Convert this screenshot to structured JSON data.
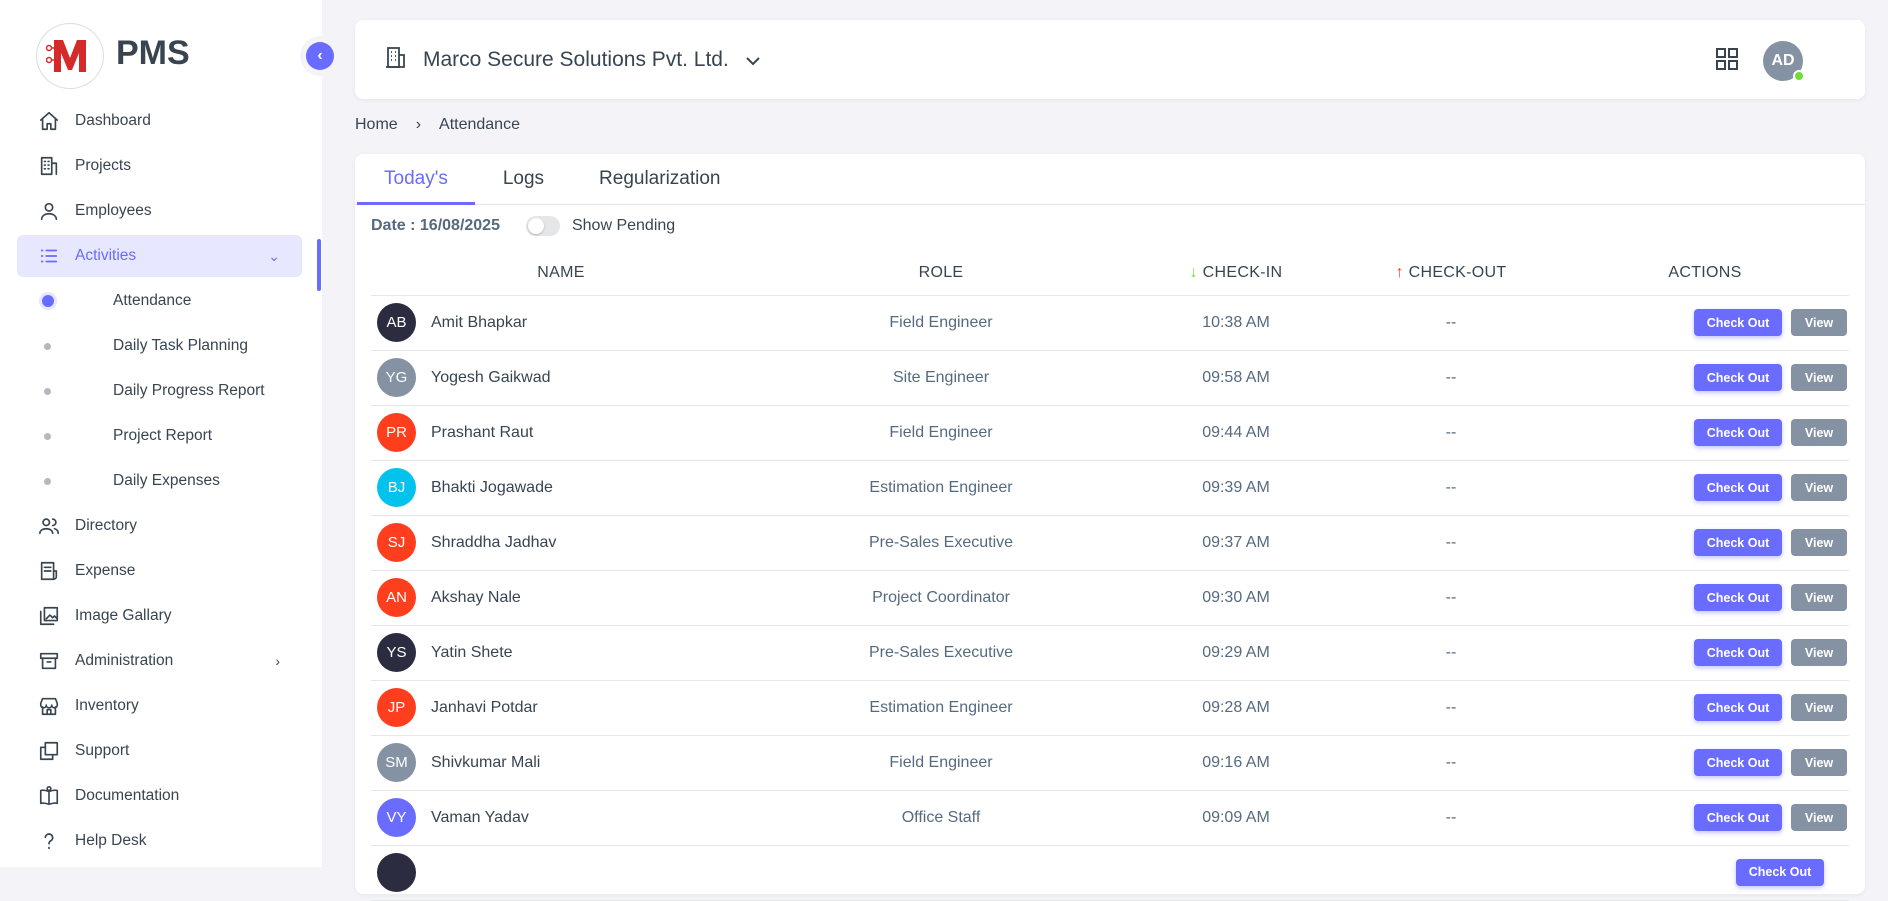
{
  "brand": {
    "name": "PMS",
    "logo_letter": "M"
  },
  "sidebar": {
    "items": [
      {
        "label": "Dashboard",
        "icon": "home-icon"
      },
      {
        "label": "Projects",
        "icon": "building-icon"
      },
      {
        "label": "Employees",
        "icon": "user-icon"
      },
      {
        "label": "Activities",
        "icon": "list-icon",
        "active": true,
        "expanded": true
      },
      {
        "label": "Directory",
        "icon": "users-icon"
      },
      {
        "label": "Expense",
        "icon": "receipt-icon"
      },
      {
        "label": "Image Gallary",
        "icon": "gallery-icon"
      },
      {
        "label": "Administration",
        "icon": "archive-icon"
      },
      {
        "label": "Inventory",
        "icon": "store-icon"
      },
      {
        "label": "Support",
        "icon": "copy-icon"
      },
      {
        "label": "Documentation",
        "icon": "book-icon"
      },
      {
        "label": "Help Desk",
        "icon": "question-icon"
      }
    ],
    "sub_items": [
      {
        "label": "Attendance",
        "active": true
      },
      {
        "label": "Daily Task Planning"
      },
      {
        "label": "Daily Progress Report"
      },
      {
        "label": "Project Report"
      },
      {
        "label": "Daily Expenses"
      }
    ]
  },
  "header": {
    "organization": "Marco Secure Solutions Pvt. Ltd.",
    "user_initials": "AD",
    "status_color": "#71dd37"
  },
  "breadcrumb": [
    "Home",
    "Attendance"
  ],
  "tabs": [
    "Today's",
    "Logs",
    "Regularization"
  ],
  "filter": {
    "date": "Date : 16/08/2025",
    "toggle_label": "Show Pending",
    "toggle_on": false
  },
  "table": {
    "columns": [
      "Name",
      "Role",
      "Check-in",
      "Check-out",
      "Actions"
    ],
    "check_out_label": "Check Out",
    "view_label": "View",
    "rows": [
      {
        "initials": "AB",
        "name": "Amit Bhapkar",
        "role": "Field Engineer",
        "in": "10:38 AM",
        "out": "--",
        "color": "#2b2c40"
      },
      {
        "initials": "YG",
        "name": "Yogesh Gaikwad",
        "role": "Site Engineer",
        "in": "09:58 AM",
        "out": "--",
        "color": "#8592a3"
      },
      {
        "initials": "PR",
        "name": "Prashant Raut",
        "role": "Field Engineer",
        "in": "09:44 AM",
        "out": "--",
        "color": "#ff3e1d"
      },
      {
        "initials": "BJ",
        "name": "Bhakti Jogawade",
        "role": "Estimation Engineer",
        "in": "09:39 AM",
        "out": "--",
        "color": "#03c3ec"
      },
      {
        "initials": "SJ",
        "name": "Shraddha Jadhav",
        "role": "Pre-Sales Executive",
        "in": "09:37 AM",
        "out": "--",
        "color": "#ff3e1d"
      },
      {
        "initials": "AN",
        "name": "Akshay Nale",
        "role": "Project Coordinator",
        "in": "09:30 AM",
        "out": "--",
        "color": "#ff3e1d"
      },
      {
        "initials": "YS",
        "name": "Yatin Shete",
        "role": "Pre-Sales Executive",
        "in": "09:29 AM",
        "out": "--",
        "color": "#2b2c40"
      },
      {
        "initials": "JP",
        "name": "Janhavi Potdar",
        "role": "Estimation Engineer",
        "in": "09:28 AM",
        "out": "--",
        "color": "#ff3e1d"
      },
      {
        "initials": "SM",
        "name": "Shivkumar Mali",
        "role": "Field Engineer",
        "in": "09:16 AM",
        "out": "--",
        "color": "#8592a3"
      },
      {
        "initials": "VY",
        "name": "Vaman Yadav",
        "role": "Office Staff",
        "in": "09:09 AM",
        "out": "--",
        "color": "#696cff"
      }
    ]
  },
  "colors": {
    "accent": "#696cff",
    "check_in_arrow": "#71dd37",
    "check_out_arrow": "#ff3e1d"
  }
}
